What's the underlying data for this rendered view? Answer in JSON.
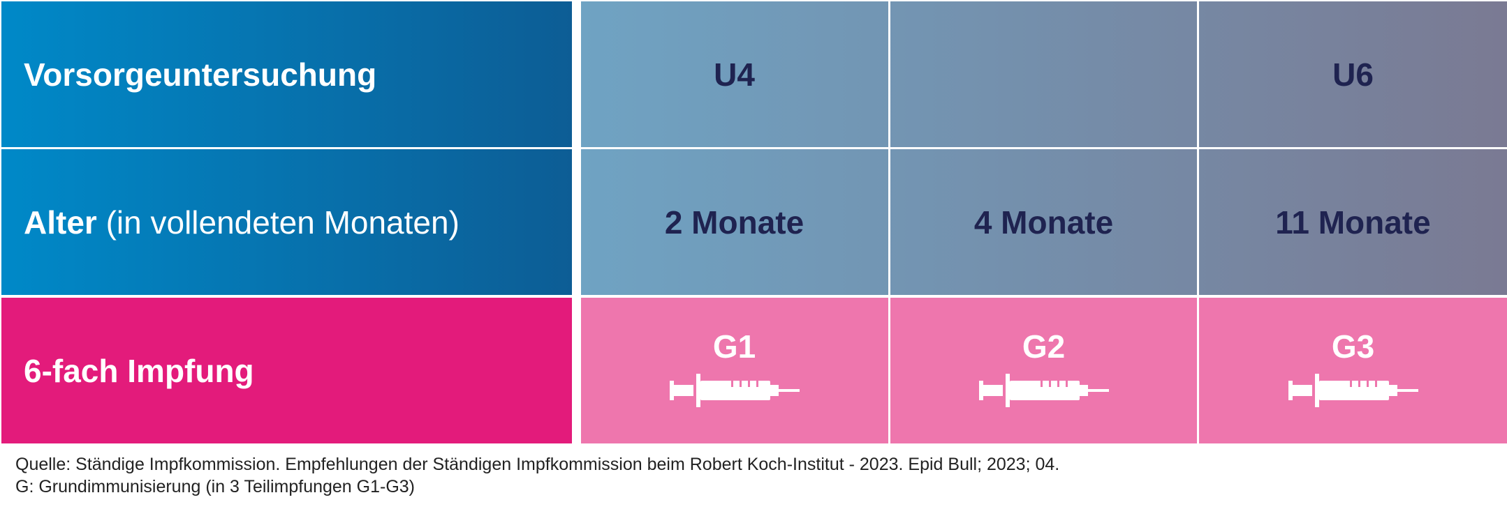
{
  "rows": [
    {
      "label_bold": "Vorsorgeuntersuchung",
      "label_light": "",
      "cells": [
        "U4",
        "",
        "U6"
      ]
    },
    {
      "label_bold": "Alter",
      "label_light": " (in vollendeten Monaten)",
      "cells": [
        "2 Monate",
        "4 Monate",
        "11 Monate"
      ]
    },
    {
      "label_bold": "6-fach Impfung",
      "label_light": "",
      "cells": [
        "G1",
        "G2",
        "G3"
      ],
      "icon": "syringe-icon"
    }
  ],
  "footer": {
    "source": "Quelle: Ständige Impfkommission. Empfehlungen der Ständigen Impfkommission beim Robert Koch-Institut - 2023. Epid Bull; 2023; 04.",
    "note": "G: Grundimmunisierung (in 3 Teilimpfungen G1-G3)"
  },
  "colors": {
    "label_blue_start": "#0089c8",
    "label_blue_end": "#0d5d95",
    "label_pink": "#e31b7b",
    "data_gray_start": "#6fa3c3",
    "data_gray_end": "#7a7a93",
    "data_pink": "#ee76ad",
    "dark_text": "#1f2350"
  }
}
